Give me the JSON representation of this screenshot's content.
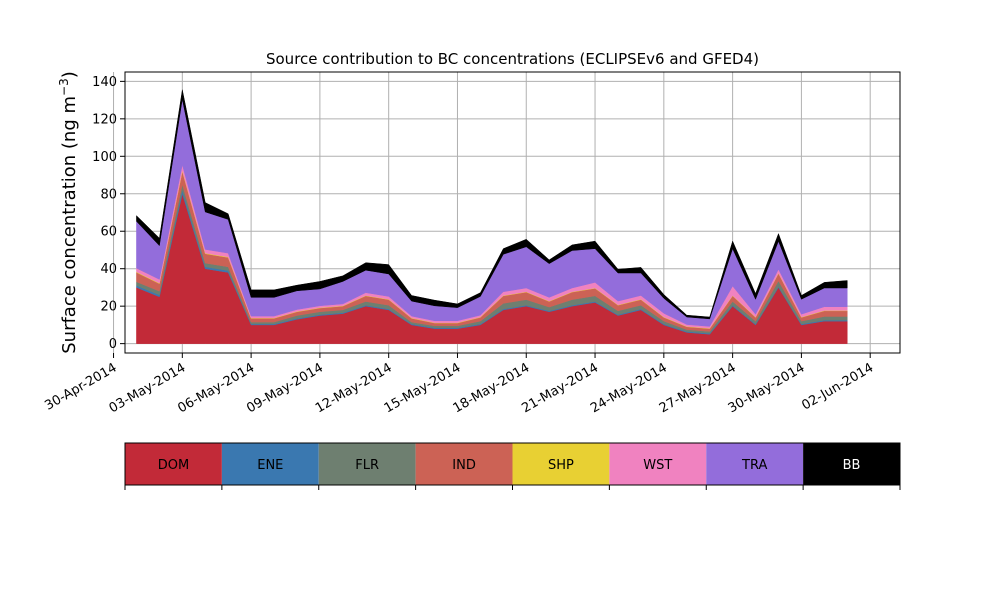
{
  "chart_data": {
    "type": "area",
    "stacked": true,
    "title": "Source contribution to BC concentrations (ECLIPSEv6 and GFED4)",
    "ylabel_main": "Surface concentration (ng m",
    "ylabel_sup": "−3",
    "ylabel_close": ")",
    "xlabel": "",
    "ylim": [
      -5,
      145
    ],
    "yticks": [
      0,
      20,
      40,
      60,
      80,
      100,
      120,
      140
    ],
    "xlim_days": [
      -0.5,
      33.3
    ],
    "xticks": [
      "30-Apr-2014",
      "03-May-2014",
      "06-May-2014",
      "09-May-2014",
      "12-May-2014",
      "15-May-2014",
      "18-May-2014",
      "21-May-2014",
      "24-May-2014",
      "27-May-2014",
      "30-May-2014",
      "02-Jun-2014"
    ],
    "grid": true,
    "x": [
      "2014-05-01",
      "2014-05-02",
      "2014-05-03",
      "2014-05-04",
      "2014-05-05",
      "2014-05-06",
      "2014-05-07",
      "2014-05-08",
      "2014-05-09",
      "2014-05-10",
      "2014-05-11",
      "2014-05-12",
      "2014-05-13",
      "2014-05-14",
      "2014-05-15",
      "2014-05-16",
      "2014-05-17",
      "2014-05-18",
      "2014-05-19",
      "2014-05-20",
      "2014-05-21",
      "2014-05-22",
      "2014-05-23",
      "2014-05-24",
      "2014-05-25",
      "2014-05-26",
      "2014-05-27",
      "2014-05-28",
      "2014-05-29",
      "2014-05-30",
      "2014-05-31",
      "2014-06-01"
    ],
    "series": [
      {
        "name": "DOM",
        "color": "#c22a38",
        "values": [
          30,
          25,
          80,
          40,
          38,
          10,
          10,
          13,
          15,
          16,
          20,
          18,
          10,
          8,
          8,
          10,
          18,
          20,
          17,
          20,
          22,
          15,
          18,
          10,
          6,
          5,
          20,
          10,
          30,
          10,
          12,
          12
        ]
      },
      {
        "name": "ENE",
        "color": "#3a78b0",
        "values": [
          1,
          1,
          2,
          1,
          1,
          0.5,
          0.5,
          0.5,
          0.5,
          0.5,
          0.5,
          0.5,
          0.5,
          0.5,
          0.5,
          0.5,
          0.5,
          0.5,
          0.5,
          0.5,
          0.5,
          0.5,
          0.5,
          0.5,
          0.5,
          0.5,
          0.5,
          0.5,
          0.5,
          0.5,
          0.5,
          0.5
        ]
      },
      {
        "name": "FLR",
        "color": "#6e7f70",
        "values": [
          2,
          2,
          3,
          2,
          2,
          1,
          1,
          1.5,
          1.5,
          1.5,
          2,
          2,
          1,
          1,
          1,
          1.5,
          3,
          3,
          2,
          3,
          3,
          2,
          2,
          1.5,
          1,
          1,
          2,
          1.5,
          3,
          1.5,
          2,
          2
        ]
      },
      {
        "name": "IND",
        "color": "#cc6255",
        "values": [
          5,
          4,
          7,
          5,
          5,
          2,
          2,
          2,
          2,
          2,
          3,
          3,
          2,
          1.5,
          1.5,
          2,
          4,
          4,
          3,
          4,
          4,
          3,
          3,
          2,
          1.5,
          1.5,
          3,
          2,
          4,
          2,
          3,
          3
        ]
      },
      {
        "name": "SHP",
        "color": "#e8d033",
        "values": [
          0.3,
          0.3,
          0.5,
          0.3,
          0.3,
          0.2,
          0.2,
          0.2,
          0.2,
          0.2,
          0.2,
          0.2,
          0.2,
          0.2,
          0.2,
          0.2,
          0.2,
          0.2,
          0.2,
          0.2,
          0.2,
          0.2,
          0.2,
          0.2,
          0.2,
          0.2,
          0.2,
          0.2,
          0.2,
          0.2,
          0.2,
          0.2
        ]
      },
      {
        "name": "WST",
        "color": "#f082c0",
        "values": [
          2,
          2,
          3,
          2,
          2,
          1,
          1,
          1,
          1,
          1,
          1.5,
          1.5,
          1,
          1,
          1,
          1,
          2,
          2,
          2,
          2,
          3,
          2,
          2,
          2,
          1,
          1,
          5,
          1.5,
          2,
          1.5,
          2,
          2
        ]
      },
      {
        "name": "TRA",
        "color": "#936ddb",
        "values": [
          25,
          18,
          35,
          20,
          18,
          10,
          10,
          10,
          9,
          12,
          12,
          12,
          8,
          8,
          7,
          10,
          20,
          22,
          18,
          20,
          18,
          15,
          12,
          8,
          4,
          4,
          20,
          8,
          15,
          8,
          10,
          10
        ]
      },
      {
        "name": "BB",
        "color": "#000000",
        "values": [
          3,
          4,
          5,
          5,
          3,
          4,
          4,
          3,
          4,
          3,
          4,
          5,
          3,
          3,
          2,
          2,
          3,
          4,
          2,
          3,
          4,
          2,
          3,
          2,
          1,
          1,
          4,
          3,
          4,
          2,
          3,
          4
        ]
      }
    ],
    "legend": {
      "placement": "bottom",
      "entries": [
        {
          "label": "DOM",
          "color": "#c22a38",
          "text_color": "#000000"
        },
        {
          "label": "ENE",
          "color": "#3a78b0",
          "text_color": "#000000"
        },
        {
          "label": "FLR",
          "color": "#6e7f70",
          "text_color": "#000000"
        },
        {
          "label": "IND",
          "color": "#cc6255",
          "text_color": "#000000"
        },
        {
          "label": "SHP",
          "color": "#e8d033",
          "text_color": "#000000"
        },
        {
          "label": "WST",
          "color": "#f082c0",
          "text_color": "#000000"
        },
        {
          "label": "TRA",
          "color": "#936ddb",
          "text_color": "#000000"
        },
        {
          "label": "BB",
          "color": "#000000",
          "text_color": "#ffffff"
        }
      ]
    }
  }
}
